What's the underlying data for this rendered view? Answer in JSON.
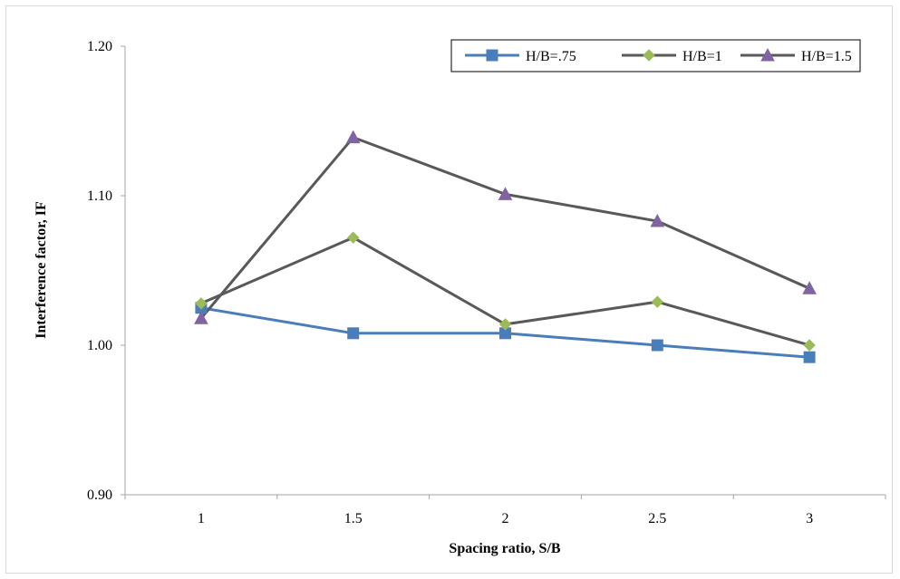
{
  "chart_data": {
    "type": "line",
    "title": "",
    "xlabel": "Spacing ratio, S/B",
    "ylabel": "Interference factor, IF",
    "categories": [
      "1",
      "1.5",
      "2",
      "2.5",
      "3"
    ],
    "ylim": [
      0.9,
      1.2
    ],
    "yticks": [
      "0.90",
      "1.00",
      "1.10",
      "1.20"
    ],
    "grid": false,
    "legend_position": "top-right",
    "series": [
      {
        "name": "H/B=.75",
        "values": [
          1.025,
          1.008,
          1.008,
          1.0,
          0.992
        ],
        "color": "#4a7ebb",
        "marker": "square",
        "marker_color": "#4a7ebb"
      },
      {
        "name": "H/B=1",
        "values": [
          1.028,
          1.072,
          1.014,
          1.029,
          1.0
        ],
        "color": "#595959",
        "marker": "diamond",
        "marker_color": "#9bbb59"
      },
      {
        "name": "H/B=1.5",
        "values": [
          1.018,
          1.139,
          1.101,
          1.083,
          1.038
        ],
        "color": "#595959",
        "marker": "triangle",
        "marker_color": "#8064a2"
      }
    ]
  }
}
